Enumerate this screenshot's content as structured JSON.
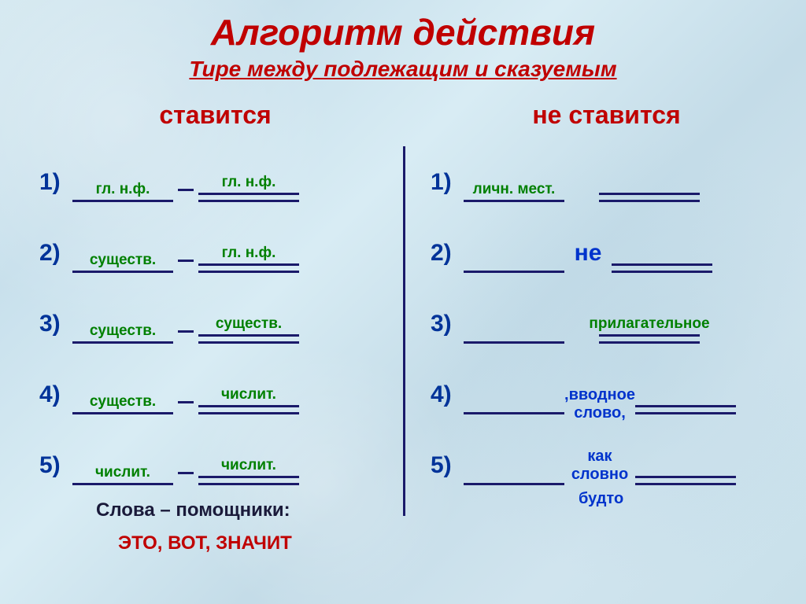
{
  "colors": {
    "title": "#c00000",
    "subtitle": "#c00000",
    "col_head": "#c00000",
    "row_num": "#003399",
    "green": "#008000",
    "blue_text": "#0033cc",
    "line": "#1a1a6a",
    "footer_title": "#1a1a3a",
    "footer_words": "#c00000"
  },
  "sizes": {
    "title_fs": 46,
    "subtitle_fs": 28,
    "col_head_fs": 32,
    "label_fs": 19,
    "row_num_fs": 30,
    "subj_w": 128,
    "pred_w": 128,
    "ne_fs": 30
  },
  "title": "Алгоритм действия",
  "subtitle": "Тире между подлежащим и сказуемым",
  "left": {
    "head": "ставится",
    "rows": [
      {
        "n": "1)",
        "subj": "гл. н.ф.",
        "pred": "гл. н.ф."
      },
      {
        "n": "2)",
        "subj": "существ.",
        "pred": "гл. н.ф."
      },
      {
        "n": "3)",
        "subj": "существ.",
        "pred": "существ."
      },
      {
        "n": "4)",
        "subj": "существ.",
        "pred": "числит."
      },
      {
        "n": "5)",
        "subj": "числит.",
        "pred": "числит."
      }
    ],
    "helpers_title": "Слова – помощники:",
    "helpers_words": "ЭТО, ВОТ, ЗНАЧИТ"
  },
  "right": {
    "head": "не ставится",
    "rows": [
      {
        "n": "1)",
        "subj": "личн. мест.",
        "mid": null,
        "pred": null,
        "pred_above": false
      },
      {
        "n": "2)",
        "subj": null,
        "mid": "не",
        "mid_color": "blue",
        "mid_fs": 30,
        "pred": null
      },
      {
        "n": "3)",
        "subj": null,
        "mid": null,
        "pred": "прилагательное",
        "pred_above": true
      },
      {
        "n": "4)",
        "subj": null,
        "mid_stack": [
          ",вводное",
          "слово,"
        ],
        "mid_color": "blue",
        "mid_fs": 20,
        "pred": null
      },
      {
        "n": "5)",
        "subj": null,
        "mid_stack": [
          "как",
          "словно"
        ],
        "trailing": "будто",
        "mid_color": "blue",
        "mid_fs": 20,
        "pred": null
      }
    ]
  }
}
